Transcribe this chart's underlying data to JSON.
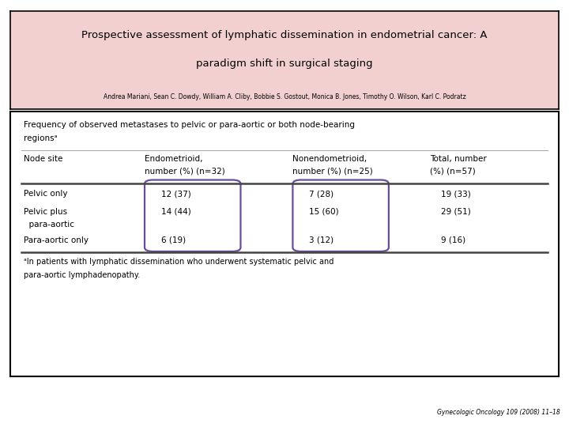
{
  "title_line1": "Prospective assessment of lymphatic dissemination in endometrial cancer: A",
  "title_line2": "paradigm shift in surgical staging",
  "authors": "Andrea Mariani, Sean C. Dowdy, William A. Cliby, Bobbie S. Gostout, Monica B. Jones, Timothy O. Wilson, Karl C. Podratz",
  "journal": "Gynecologic Oncology 109 (2008) 11–18",
  "header_bg": "#f2d0d0",
  "table_bg": "#ffffff",
  "outer_bg": "#ffffff",
  "table_title_line1": "Frequency of observed metastases to pelvic or para-aortic or both node-bearing",
  "table_title_line2": "regionsᵃ",
  "col_headers_line1": [
    "Node site",
    "Endometrioid,",
    "Nonendometrioid,",
    "Total, number"
  ],
  "col_headers_line2": [
    "",
    "number (%) (n=32)",
    "number (%) (n=25)",
    "(%) (n=57)"
  ],
  "rows": [
    [
      "Pelvic only",
      "12 (37)",
      "7 (28)",
      "19 (33)"
    ],
    [
      "Pelvic plus",
      "14 (44)",
      "15 (60)",
      "29 (51)"
    ],
    [
      "  para-aortic",
      "",
      "",
      ""
    ],
    [
      "Para-aortic only",
      "6 (19)",
      "3 (12)",
      "9 (16)"
    ]
  ],
  "footnote_line1": "ᵃIn patients with lymphatic dissemination who underwent systematic pelvic and",
  "footnote_line2": "para-aortic lymphadenopathy.",
  "highlight_color": "#6a4c9c",
  "border_color": "#000000",
  "line_color_thin": "#aaaaaa",
  "line_color_thick": "#444444"
}
